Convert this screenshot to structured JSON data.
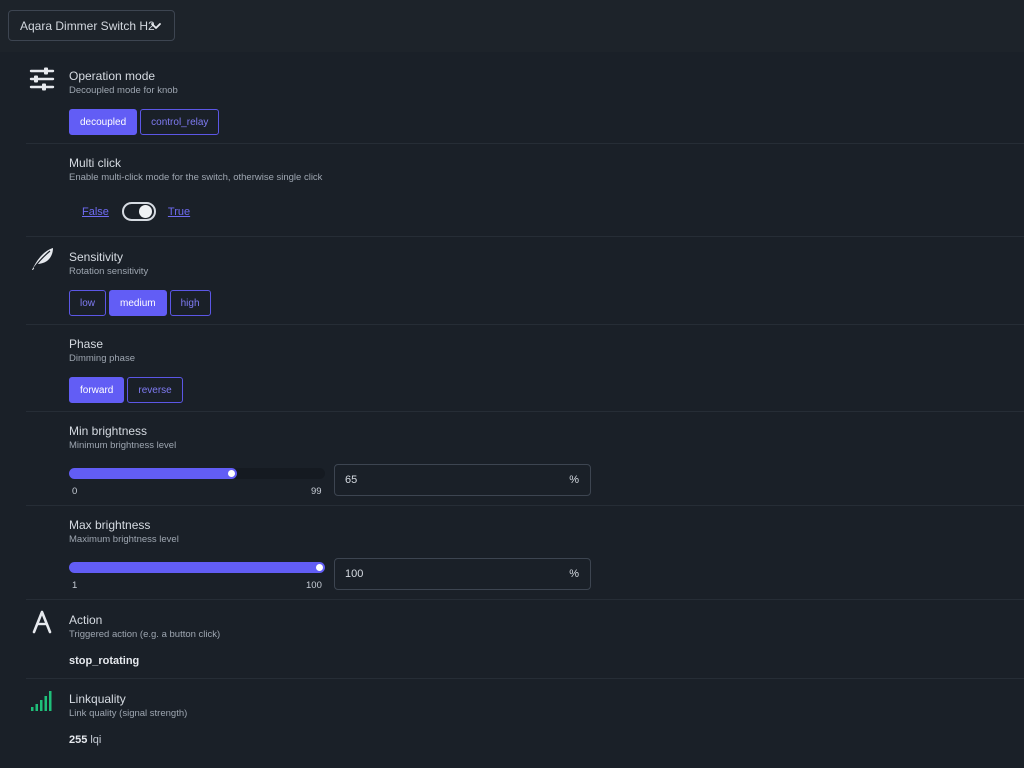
{
  "device_select": {
    "value": "Aqara Dimmer Switch H2"
  },
  "operation_mode": {
    "title": "Operation mode",
    "description": "Decoupled mode for knob",
    "options": [
      "decoupled",
      "control_relay"
    ],
    "selected": "decoupled"
  },
  "multi_click": {
    "title": "Multi click",
    "description": "Enable multi-click mode for the switch, otherwise single click",
    "false_label": "False",
    "true_label": "True",
    "value": true
  },
  "sensitivity": {
    "title": "Sensitivity",
    "description": "Rotation sensitivity",
    "options": [
      "low",
      "medium",
      "high"
    ],
    "selected": "medium"
  },
  "phase": {
    "title": "Phase",
    "description": "Dimming phase",
    "options": [
      "forward",
      "reverse"
    ],
    "selected": "forward"
  },
  "min_brightness": {
    "title": "Min brightness",
    "description": "Minimum brightness level",
    "min": "0",
    "max": "99",
    "value": "65",
    "unit": "%"
  },
  "max_brightness": {
    "title": "Max brightness",
    "description": "Maximum brightness level",
    "min": "1",
    "max": "100",
    "value": "100",
    "unit": "%"
  },
  "action": {
    "title": "Action",
    "description": "Triggered action (e.g. a button click)",
    "value": "stop_rotating"
  },
  "linkquality": {
    "title": "Linkquality",
    "description": "Link quality (signal strength)",
    "value": "255",
    "unit": "lqi"
  },
  "colors": {
    "accent": "#625df5",
    "signal": "#1fbf7a"
  },
  "icons": [
    "chevron-down-icon",
    "sliders-icon",
    "feather-icon",
    "letter-a-icon",
    "signal-bars-icon"
  ]
}
